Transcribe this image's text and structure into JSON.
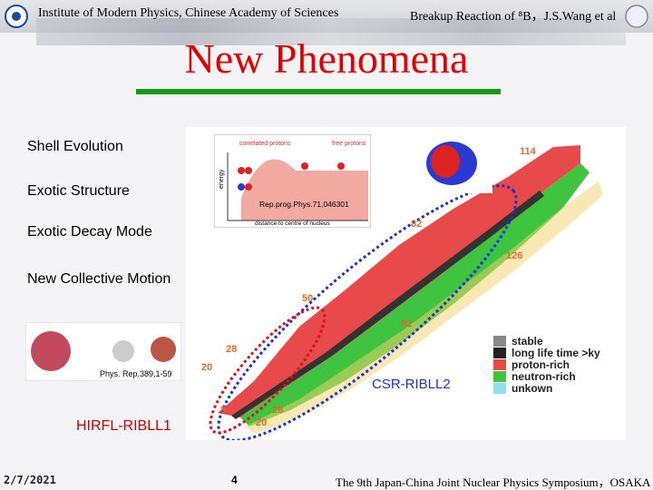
{
  "header": {
    "institute": "Institute of Modern Physics, Chinese Academy of Sciences",
    "topic": "Breakup Reaction of ⁸B，J.S.Wang  et al"
  },
  "title": "New Phenomena",
  "topics": [
    "Shell Evolution",
    "Exotic Structure",
    "Exotic Decay Mode",
    "New Collective Motion"
  ],
  "inset_top": {
    "labels": [
      "correlated protons",
      "free protons"
    ],
    "axis_y": "energy",
    "axis_x": "distance to centre of nucleus",
    "reference": "Rep.prog.Phys.71,046301"
  },
  "inset_bottom": {
    "reference": "Phys. Rep.389,1-59"
  },
  "chart": {
    "magic_numbers": [
      "114",
      "82",
      "126",
      "50",
      "82",
      "28",
      "20",
      "20",
      "28",
      "8"
    ],
    "legend": [
      "stable",
      "long life time >ky",
      "proton-rich",
      "neutron-rich",
      "unkown"
    ]
  },
  "facilities": [
    "HIRFL-RIBLL1",
    "CSR-RIBLL2"
  ],
  "footer": {
    "date": "2/7/2021",
    "page": "4",
    "event": "The 9th Japan-China Joint Nuclear Physics Symposium，OSAKA"
  }
}
